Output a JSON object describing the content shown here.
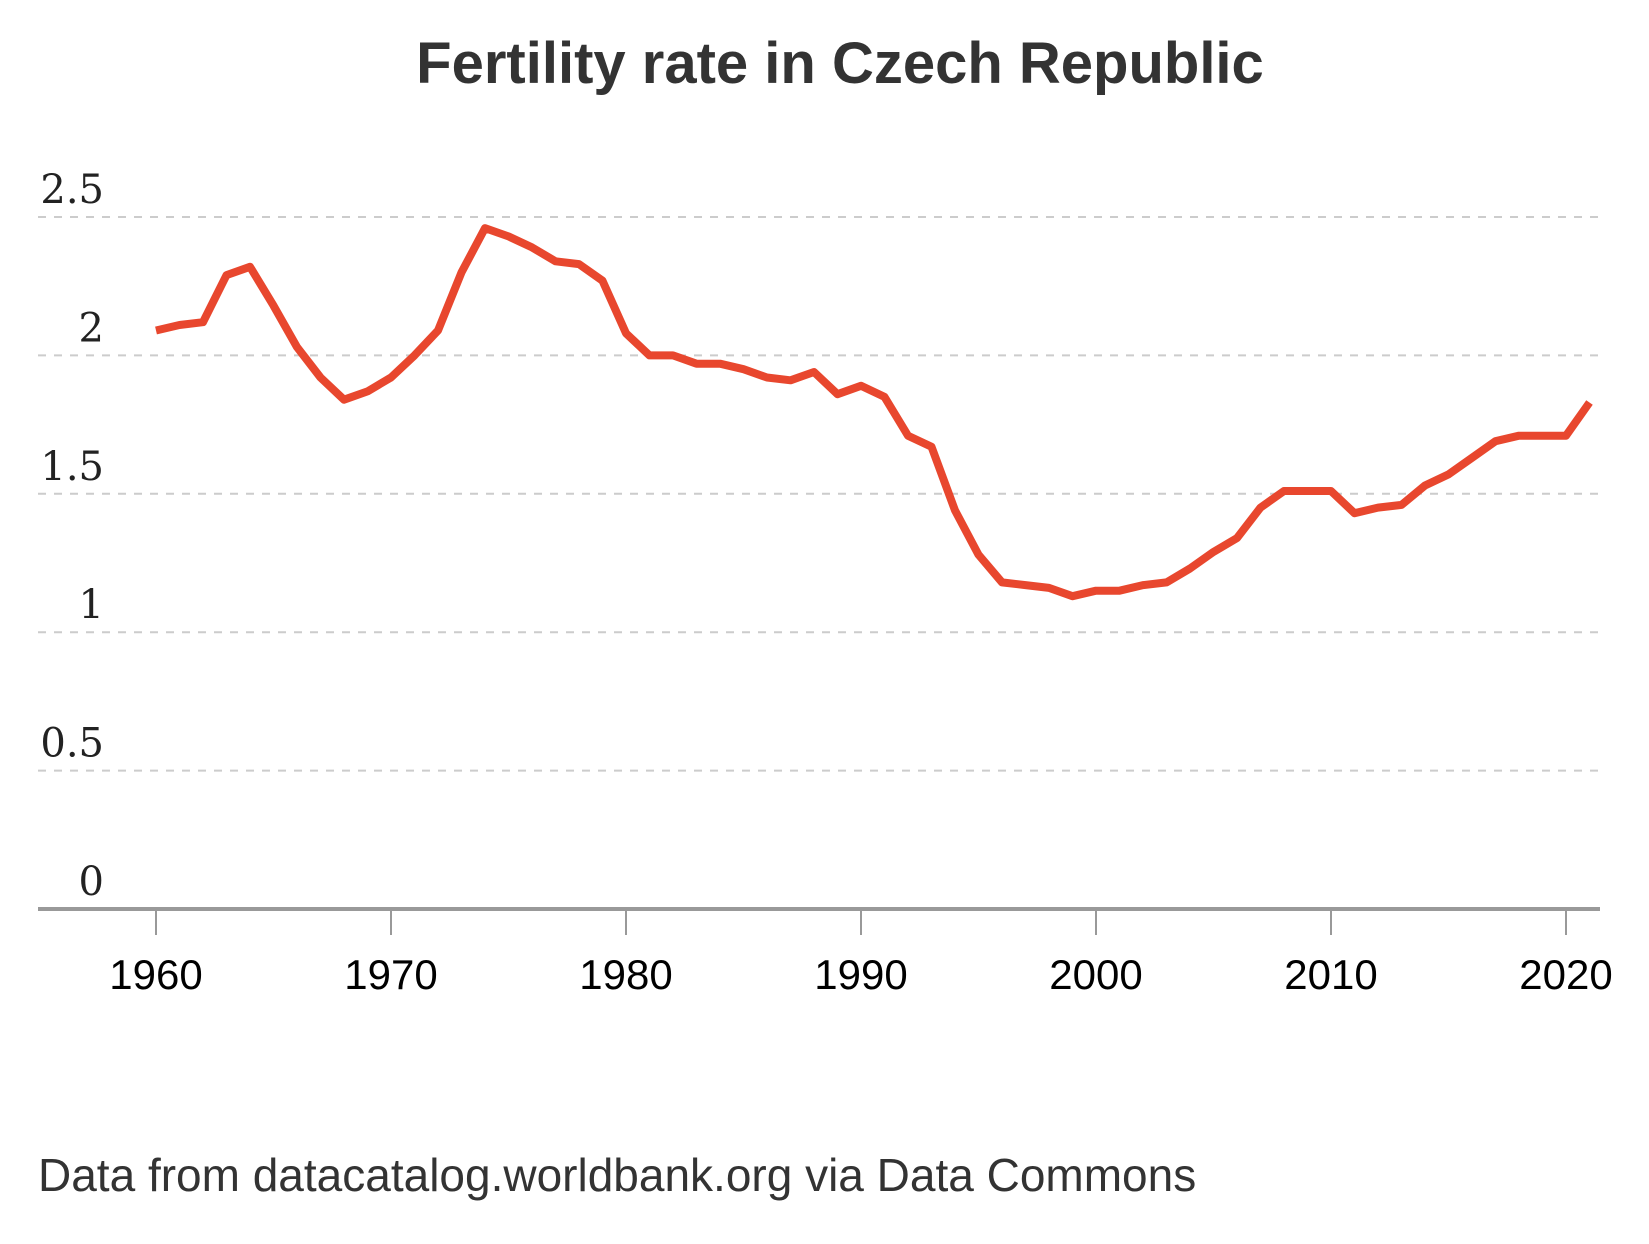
{
  "chart_data": {
    "type": "line",
    "title": "Fertility rate in Czech Republic",
    "xlabel": "",
    "ylabel": "",
    "xlim": [
      1955,
      2021
    ],
    "ylim": [
      0,
      2.5
    ],
    "y_ticks": [
      "0",
      "0.5",
      "1",
      "1.5",
      "2",
      "2.5"
    ],
    "x_ticks": [
      "1960",
      "1970",
      "1980",
      "1990",
      "2000",
      "2010",
      "2020"
    ],
    "grid": "horizontal dashed",
    "line_color": "#e8472e",
    "series": [
      {
        "x": [
          1960,
          1961,
          1962,
          1963,
          1964,
          1965,
          1966,
          1967,
          1968,
          1969,
          1970,
          1971,
          1972,
          1973,
          1974,
          1975,
          1976,
          1977,
          1978,
          1979,
          1980,
          1981,
          1982,
          1983,
          1984,
          1985,
          1986,
          1987,
          1988,
          1989,
          1990,
          1991,
          1992,
          1993,
          1994,
          1995,
          1996,
          1997,
          1998,
          1999,
          2000,
          2001,
          2002,
          2003,
          2004,
          2005,
          2006,
          2007,
          2008,
          2009,
          2010,
          2011,
          2012,
          2013,
          2014,
          2015,
          2016,
          2017,
          2018,
          2019,
          2020,
          2021
        ],
        "values": [
          2.09,
          2.11,
          2.12,
          2.29,
          2.32,
          2.18,
          2.03,
          1.92,
          1.84,
          1.87,
          1.92,
          2.0,
          2.09,
          2.3,
          2.46,
          2.43,
          2.39,
          2.34,
          2.33,
          2.27,
          2.08,
          2.0,
          2.0,
          1.97,
          1.97,
          1.95,
          1.92,
          1.91,
          1.94,
          1.86,
          1.89,
          1.85,
          1.71,
          1.67,
          1.44,
          1.28,
          1.18,
          1.17,
          1.16,
          1.13,
          1.15,
          1.15,
          1.17,
          1.18,
          1.23,
          1.29,
          1.34,
          1.45,
          1.51,
          1.51,
          1.51,
          1.43,
          1.45,
          1.46,
          1.53,
          1.57,
          1.63,
          1.69,
          1.71,
          1.71,
          1.71,
          1.83
        ]
      }
    ]
  },
  "source": "Data from datacatalog.worldbank.org via Data Commons"
}
